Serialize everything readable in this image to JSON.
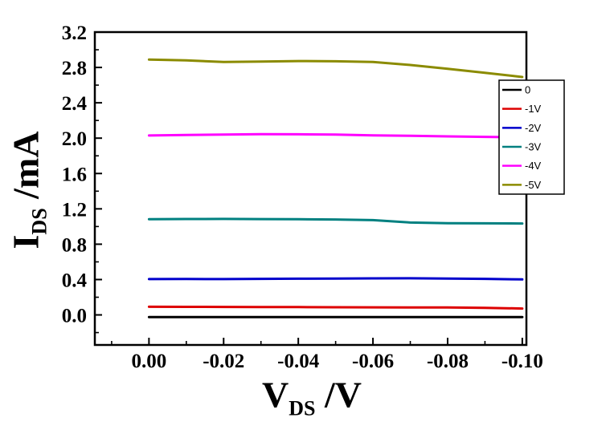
{
  "labels": {
    "y_main": "I",
    "y_sub": "DS",
    "y_rest": " /mA",
    "x_main": "V",
    "x_sub": "DS",
    "x_rest": " /V"
  },
  "chart_data": {
    "type": "line",
    "title": "",
    "xlabel": "V_DS /V",
    "ylabel": "I_DS /mA",
    "x": [
      0.0,
      -0.01,
      -0.02,
      -0.03,
      -0.04,
      -0.05,
      -0.06,
      -0.07,
      -0.08,
      -0.09,
      -0.1
    ],
    "series": [
      {
        "name": "0",
        "color": "#000000",
        "values": [
          -0.025,
          -0.025,
          -0.025,
          -0.025,
          -0.025,
          -0.025,
          -0.025,
          -0.025,
          -0.025,
          -0.025,
          -0.025
        ]
      },
      {
        "name": "-1V",
        "color": "#dd0000",
        "values": [
          0.092,
          0.091,
          0.09,
          0.089,
          0.088,
          0.087,
          0.086,
          0.085,
          0.084,
          0.08,
          0.072
        ]
      },
      {
        "name": "-2V",
        "color": "#0000cc",
        "values": [
          0.405,
          0.406,
          0.405,
          0.408,
          0.41,
          0.412,
          0.413,
          0.414,
          0.412,
          0.408,
          0.402
        ]
      },
      {
        "name": "-3V",
        "color": "#008080",
        "values": [
          1.082,
          1.085,
          1.086,
          1.084,
          1.082,
          1.08,
          1.072,
          1.045,
          1.038,
          1.036,
          1.034
        ]
      },
      {
        "name": "-4V",
        "color": "#ff00ff",
        "values": [
          2.03,
          2.035,
          2.04,
          2.045,
          2.044,
          2.04,
          2.032,
          2.026,
          2.02,
          2.015,
          2.01
        ]
      },
      {
        "name": "-5V",
        "color": "#8b8b00",
        "values": [
          2.89,
          2.88,
          2.862,
          2.866,
          2.872,
          2.87,
          2.862,
          2.828,
          2.785,
          2.74,
          2.692
        ]
      }
    ],
    "x_ticks": [
      0.0,
      -0.02,
      -0.04,
      -0.06,
      -0.08,
      -0.1
    ],
    "x_tick_labels": [
      "0.00",
      "-0.02",
      "-0.04",
      "-0.06",
      "-0.08",
      "-0.10"
    ],
    "y_ticks": [
      0.0,
      0.4,
      0.8,
      1.2,
      1.6,
      2.0,
      2.4,
      2.8,
      3.2
    ],
    "y_tick_labels": [
      "0.0",
      "0.4",
      "0.8",
      "1.2",
      "1.6",
      "2.0",
      "2.4",
      "2.8",
      "3.2"
    ],
    "xlim": [
      0.0145,
      -0.1011
    ],
    "ylim": [
      -0.34,
      3.2
    ],
    "grid": false,
    "legend": {
      "position": "right",
      "entries": [
        "0",
        "-1V",
        "-2V",
        "-3V",
        "-4V",
        "-5V"
      ]
    }
  }
}
